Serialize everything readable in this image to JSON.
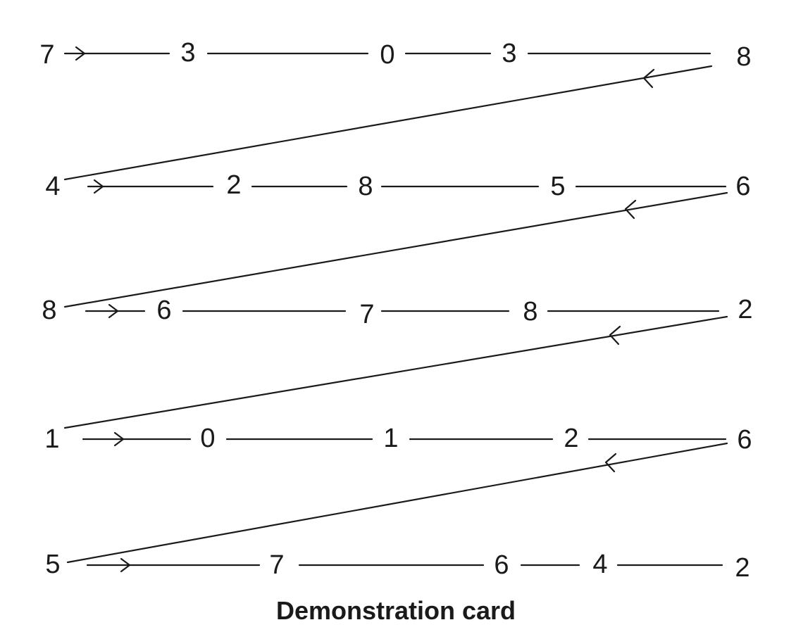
{
  "rows": [
    {
      "digits": [
        "7",
        "3",
        "0",
        "3",
        "8"
      ]
    },
    {
      "digits": [
        "4",
        "2",
        "8",
        "5",
        "6"
      ]
    },
    {
      "digits": [
        "8",
        "6",
        "7",
        "8",
        "2"
      ]
    },
    {
      "digits": [
        "1",
        "0",
        "1",
        "2",
        "6"
      ]
    },
    {
      "digits": [
        "5",
        "7",
        "6",
        "4",
        "2"
      ]
    }
  ],
  "caption": "Demonstration card"
}
